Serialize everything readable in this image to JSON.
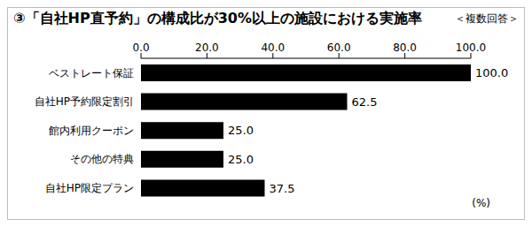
{
  "chart_data": {
    "type": "bar",
    "title": "③「自社HP直予約」の構成比が30%以上の施設における実施率",
    "subtitle": "＜複数回答＞",
    "xlabel": "(%)",
    "orientation": "horizontal",
    "categories": [
      "ベストレート保証",
      "自社HP予約限定割引",
      "館内利用クーポン",
      "その他の特典",
      "自社HP限定プラン"
    ],
    "values": [
      100.0,
      62.5,
      25.0,
      25.0,
      37.5
    ],
    "value_labels": [
      "100.0",
      "62.5",
      "25.0",
      "25.0",
      "37.5"
    ],
    "color": "#000000",
    "xlim": [
      0,
      100
    ],
    "xticks": [
      {
        "value": 0,
        "label": "0.0"
      },
      {
        "value": 20,
        "label": "20.0"
      },
      {
        "value": 40,
        "label": "40.0"
      },
      {
        "value": 60,
        "label": "60.0"
      },
      {
        "value": 80,
        "label": "80.0"
      },
      {
        "value": 100,
        "label": "100.0"
      }
    ],
    "grid": false,
    "data_labels": true
  }
}
